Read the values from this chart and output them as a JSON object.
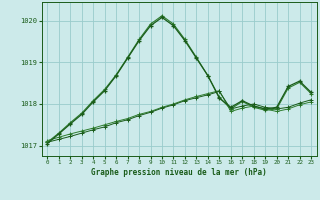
{
  "title": "Graphe pression niveau de la mer (hPa)",
  "background_color": "#cceaea",
  "grid_color": "#99cccc",
  "line_color_dark": "#1a5c1a",
  "line_color_mid": "#2e7d2e",
  "ylim": [
    1016.75,
    1020.45
  ],
  "yticks": [
    1017,
    1018,
    1019,
    1020
  ],
  "xlim": [
    -0.5,
    23.5
  ],
  "xticks": [
    0,
    1,
    2,
    3,
    4,
    5,
    6,
    7,
    8,
    9,
    10,
    11,
    12,
    13,
    14,
    15,
    16,
    17,
    18,
    19,
    20,
    21,
    22,
    23
  ],
  "y_main": [
    1017.05,
    1017.28,
    1017.52,
    1017.75,
    1018.05,
    1018.32,
    1018.68,
    1019.1,
    1019.52,
    1019.88,
    1020.08,
    1019.88,
    1019.52,
    1019.1,
    1018.68,
    1018.14,
    1017.92,
    1018.08,
    1017.95,
    1017.88,
    1017.92,
    1018.42,
    1018.55,
    1018.28
  ],
  "y_sec": [
    1017.08,
    1017.3,
    1017.55,
    1017.78,
    1018.08,
    1018.35,
    1018.7,
    1019.12,
    1019.55,
    1019.92,
    1020.12,
    1019.92,
    1019.55,
    1019.12,
    1018.68,
    1018.16,
    1017.88,
    1018.06,
    1017.92,
    1017.85,
    1017.88,
    1018.38,
    1018.52,
    1018.25
  ],
  "y_flat1": [
    1017.08,
    1017.15,
    1017.22,
    1017.3,
    1017.38,
    1017.45,
    1017.55,
    1017.62,
    1017.72,
    1017.8,
    1017.9,
    1017.98,
    1018.08,
    1018.15,
    1018.22,
    1018.3,
    1017.88,
    1017.95,
    1018.0,
    1017.92,
    1017.88,
    1017.92,
    1018.02,
    1018.1
  ],
  "y_flat2": [
    1017.12,
    1017.2,
    1017.28,
    1017.35,
    1017.42,
    1017.5,
    1017.58,
    1017.65,
    1017.75,
    1017.82,
    1017.92,
    1018.0,
    1018.1,
    1018.18,
    1018.25,
    1018.32,
    1017.82,
    1017.9,
    1017.95,
    1017.88,
    1017.82,
    1017.88,
    1017.98,
    1018.05
  ]
}
